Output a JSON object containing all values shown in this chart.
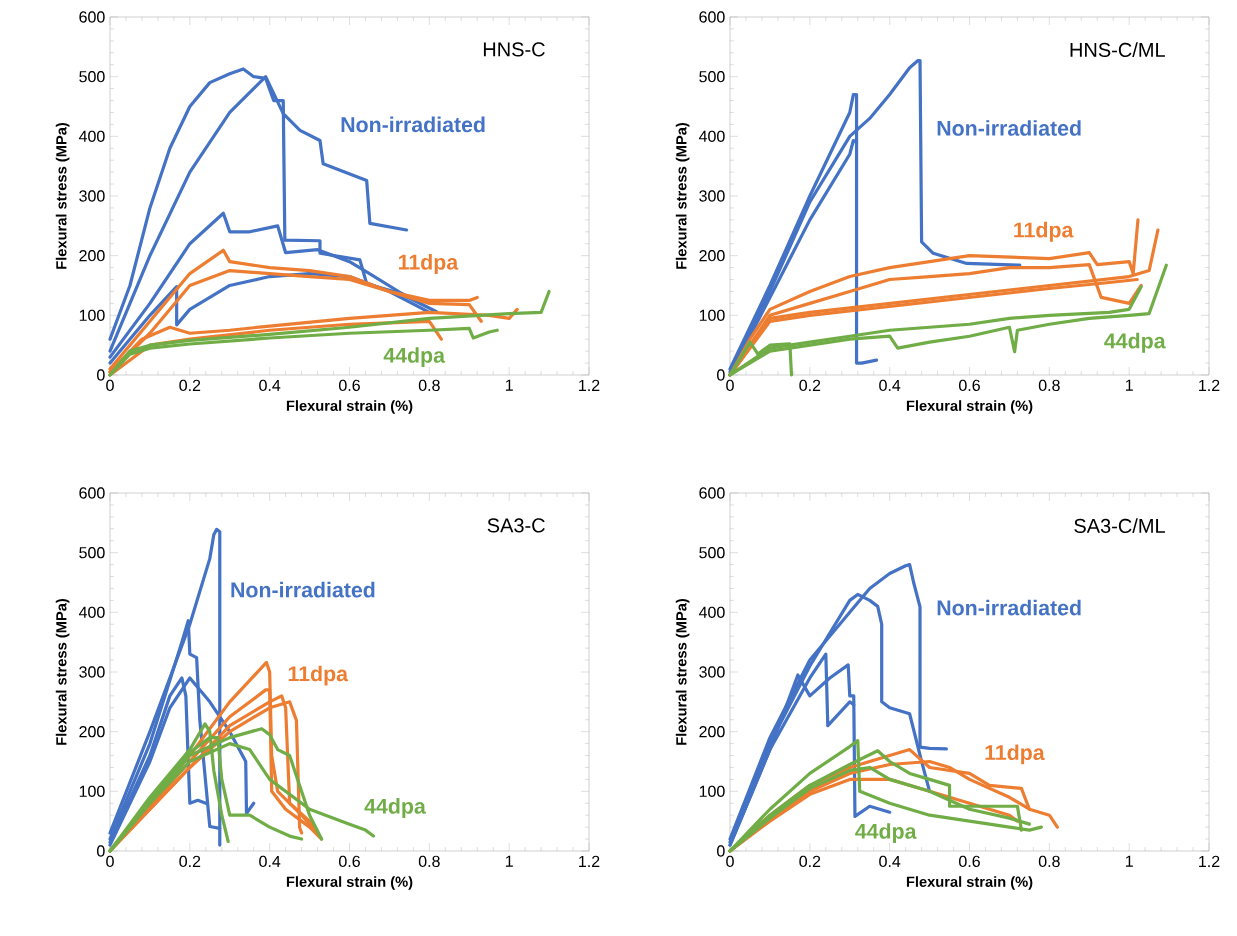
{
  "chart_data": [
    {
      "type": "line",
      "title": "HNS-C",
      "xlabel": "Flexural strain (%)",
      "ylabel": "Flexural stress (MPa)",
      "xlim": [
        0,
        1.2
      ],
      "ylim": [
        0,
        600
      ],
      "xticks": [
        0,
        0.2,
        0.4,
        0.6,
        0.8,
        1,
        1.2
      ],
      "yticks": [
        0,
        100,
        200,
        300,
        400,
        500,
        600
      ],
      "series": [
        {
          "name": "Non-irradiated",
          "color": "#4472c4",
          "x": [
            0,
            0.05,
            0.1,
            0.15,
            0.2,
            0.25,
            0.3,
            0.334,
            0.36,
            0.39,
            0.41,
            0.434,
            0.438,
            0.526,
            0.526,
            0.626,
            0.643,
            0.726,
            0.818
          ],
          "values": [
            60,
            150,
            280,
            380,
            450,
            490,
            505,
            513,
            500,
            497,
            460,
            460,
            226,
            225,
            204,
            193,
            153,
            137,
            106
          ]
        },
        {
          "color": "#4472c4",
          "x": [
            0,
            0.1,
            0.2,
            0.3,
            0.39,
            0.434,
            0.476,
            0.526,
            0.534,
            0.643,
            0.651,
            0.743
          ],
          "values": [
            40,
            200,
            340,
            440,
            500,
            438,
            410,
            393,
            354,
            326,
            254,
            243
          ]
        },
        {
          "color": "#4472c4",
          "x": [
            0,
            0.1,
            0.2,
            0.284,
            0.3,
            0.35,
            0.42,
            0.44,
            0.52,
            0.6,
            0.65,
            0.73,
            0.75
          ],
          "values": [
            30,
            120,
            220,
            271,
            240,
            240,
            250,
            205,
            210,
            190,
            170,
            137,
            130
          ]
        },
        {
          "color": "#4472c4",
          "x": [
            0,
            0.1,
            0.167,
            0.167,
            0.2,
            0.3,
            0.4,
            0.5,
            0.6,
            0.7,
            0.8
          ],
          "values": [
            20,
            100,
            148,
            84,
            110,
            150,
            165,
            170,
            165,
            140,
            105
          ]
        },
        {
          "name": "11dpa",
          "color": "#ed7d31",
          "x": [
            0,
            0.1,
            0.2,
            0.284,
            0.3,
            0.4,
            0.5,
            0.6,
            0.7,
            0.8,
            0.9,
            0.92
          ],
          "values": [
            10,
            90,
            170,
            209,
            190,
            180,
            175,
            165,
            140,
            125,
            125,
            130
          ]
        },
        {
          "color": "#ed7d31",
          "x": [
            0,
            0.1,
            0.2,
            0.3,
            0.4,
            0.5,
            0.6,
            0.7,
            0.8,
            0.9,
            0.93
          ],
          "values": [
            5,
            70,
            150,
            175,
            170,
            165,
            160,
            140,
            120,
            118,
            90
          ]
        },
        {
          "color": "#ed7d31",
          "x": [
            0,
            0.08,
            0.15,
            0.2,
            0.3,
            0.4,
            0.6,
            0.8,
            0.95,
            1.0,
            1.02
          ],
          "values": [
            5,
            60,
            80,
            70,
            75,
            82,
            95,
            105,
            100,
            95,
            110
          ]
        },
        {
          "color": "#ed7d31",
          "x": [
            0,
            0.1,
            0.2,
            0.4,
            0.6,
            0.8,
            0.83
          ],
          "values": [
            0,
            50,
            60,
            75,
            85,
            90,
            60
          ]
        },
        {
          "name": "44dpa",
          "color": "#70ad47",
          "x": [
            0,
            0.05,
            0.1,
            0.2,
            0.4,
            0.6,
            0.8,
            1.0,
            1.08,
            1.1
          ],
          "values": [
            0,
            40,
            50,
            58,
            68,
            80,
            95,
            103,
            105,
            140
          ]
        },
        {
          "color": "#70ad47",
          "x": [
            0,
            0.05,
            0.1,
            0.2,
            0.4,
            0.6,
            0.8,
            0.9,
            0.91,
            0.95,
            0.97
          ],
          "values": [
            0,
            35,
            45,
            52,
            62,
            70,
            75,
            78,
            62,
            72,
            75
          ]
        }
      ]
    },
    {
      "type": "line",
      "title": "HNS-C/ML",
      "xlabel": "Flexural strain (%)",
      "ylabel": "Flexural stress (MPa)",
      "xlim": [
        0,
        1.2
      ],
      "ylim": [
        0,
        600
      ],
      "xticks": [
        0,
        0.2,
        0.4,
        0.6,
        0.8,
        1,
        1.2
      ],
      "yticks": [
        0,
        100,
        200,
        300,
        400,
        500,
        600
      ],
      "series": [
        {
          "name": "Non-irradiated",
          "color": "#4472c4",
          "x": [
            0,
            0.1,
            0.2,
            0.3,
            0.309,
            0.317,
            0.317,
            0.33,
            0.367
          ],
          "values": [
            10,
            150,
            300,
            440,
            470,
            470,
            20,
            20,
            25
          ]
        },
        {
          "color": "#4472c4",
          "x": [
            0,
            0.1,
            0.2,
            0.3,
            0.35,
            0.4,
            0.45,
            0.471,
            0.476,
            0.48,
            0.509,
            0.593,
            0.726
          ],
          "values": [
            5,
            140,
            290,
            400,
            430,
            470,
            515,
            527,
            527,
            223,
            204,
            187,
            184
          ]
        },
        {
          "color": "#4472c4",
          "x": [
            0,
            0.1,
            0.2,
            0.3,
            0.309,
            0.317
          ],
          "values": [
            0,
            130,
            260,
            370,
            393,
            390
          ]
        },
        {
          "name": "11dpa",
          "color": "#ed7d31",
          "x": [
            0,
            0.05,
            0.1,
            0.2,
            0.3,
            0.4,
            0.5,
            0.6,
            0.8,
            0.9,
            0.92,
            1.0,
            1.01,
            1.022
          ],
          "values": [
            0,
            60,
            110,
            140,
            165,
            180,
            190,
            200,
            195,
            205,
            185,
            190,
            170,
            260
          ]
        },
        {
          "color": "#ed7d31",
          "x": [
            0,
            0.1,
            0.2,
            0.3,
            0.4,
            0.5,
            0.6,
            0.7,
            0.8,
            0.9,
            0.93,
            1.0,
            1.03
          ],
          "values": [
            0,
            100,
            120,
            140,
            160,
            165,
            170,
            180,
            180,
            185,
            130,
            120,
            150
          ]
        },
        {
          "color": "#ed7d31",
          "x": [
            0,
            0.1,
            0.2,
            0.4,
            0.6,
            0.8,
            1.0,
            1.05,
            1.072
          ],
          "values": [
            0,
            95,
            105,
            120,
            135,
            150,
            165,
            175,
            243
          ]
        },
        {
          "color": "#ed7d31",
          "x": [
            0,
            0.1,
            0.2,
            0.4,
            0.6,
            0.8,
            0.95,
            1.02
          ],
          "values": [
            0,
            90,
            100,
            115,
            130,
            145,
            155,
            160
          ]
        },
        {
          "name": "44dpa",
          "color": "#70ad47",
          "x": [
            0,
            0.05,
            0.07,
            0.1,
            0.15,
            0.154
          ],
          "values": [
            0,
            55,
            35,
            50,
            52,
            0
          ]
        },
        {
          "color": "#70ad47",
          "x": [
            0,
            0.1,
            0.2,
            0.3,
            0.4,
            0.42,
            0.5,
            0.6,
            0.7,
            0.713,
            0.72,
            0.8,
            0.9,
            1.0,
            1.05,
            1.093
          ],
          "values": [
            0,
            40,
            50,
            60,
            65,
            45,
            55,
            65,
            80,
            39,
            75,
            85,
            95,
            100,
            103,
            184
          ]
        },
        {
          "color": "#70ad47",
          "x": [
            0,
            0.1,
            0.2,
            0.3,
            0.4,
            0.5,
            0.6,
            0.7,
            0.8,
            0.95,
            1.0,
            1.03
          ],
          "values": [
            0,
            45,
            55,
            65,
            75,
            80,
            85,
            95,
            100,
            105,
            110,
            148
          ]
        }
      ]
    },
    {
      "type": "line",
      "title": "SA3-C",
      "xlabel": "Flexural strain (%)",
      "ylabel": "Flexural stress (MPa)",
      "xlim": [
        0,
        1.2
      ],
      "ylim": [
        0,
        600
      ],
      "xticks": [
        0,
        0.2,
        0.4,
        0.6,
        0.8,
        1,
        1.2
      ],
      "yticks": [
        0,
        100,
        200,
        300,
        400,
        500,
        600
      ],
      "series": [
        {
          "name": "Non-irradiated",
          "color": "#4472c4",
          "x": [
            0,
            0.1,
            0.2,
            0.25,
            0.26,
            0.267,
            0.275,
            0.275
          ],
          "values": [
            30,
            200,
            380,
            490,
            530,
            539,
            535,
            10
          ]
        },
        {
          "color": "#4472c4",
          "x": [
            0,
            0.1,
            0.18,
            0.196,
            0.2,
            0.217,
            0.225,
            0.25,
            0.275
          ],
          "values": [
            20,
            180,
            350,
            386,
            330,
            324,
            219,
            41,
            38
          ]
        },
        {
          "color": "#4472c4",
          "x": [
            0,
            0.1,
            0.15,
            0.18,
            0.19,
            0.2,
            0.22,
            0.24
          ],
          "values": [
            15,
            160,
            260,
            290,
            260,
            80,
            85,
            80
          ]
        },
        {
          "color": "#4472c4",
          "x": [
            0,
            0.1,
            0.15,
            0.2,
            0.25,
            0.3,
            0.34,
            0.342,
            0.36
          ],
          "values": [
            10,
            150,
            240,
            290,
            250,
            200,
            150,
            63,
            80
          ]
        },
        {
          "name": "11dpa",
          "color": "#ed7d31",
          "x": [
            0,
            0.1,
            0.2,
            0.3,
            0.392,
            0.4,
            0.405,
            0.42,
            0.48,
            0.52
          ],
          "values": [
            0,
            80,
            160,
            250,
            316,
            300,
            160,
            100,
            60,
            30
          ]
        },
        {
          "color": "#ed7d31",
          "x": [
            0,
            0.1,
            0.2,
            0.3,
            0.39,
            0.4,
            0.405,
            0.44,
            0.5,
            0.53
          ],
          "values": [
            0,
            75,
            150,
            225,
            270,
            270,
            100,
            70,
            40,
            20
          ]
        },
        {
          "color": "#ed7d31",
          "x": [
            0,
            0.1,
            0.2,
            0.3,
            0.4,
            0.43,
            0.44,
            0.45,
            0.5,
            0.52
          ],
          "values": [
            0,
            70,
            140,
            210,
            250,
            260,
            240,
            80,
            50,
            30
          ]
        },
        {
          "color": "#ed7d31",
          "x": [
            0,
            0.1,
            0.2,
            0.3,
            0.4,
            0.45,
            0.467,
            0.475,
            0.48
          ],
          "values": [
            0,
            70,
            140,
            200,
            240,
            250,
            219,
            40,
            30
          ]
        },
        {
          "name": "44dpa",
          "color": "#70ad47",
          "x": [
            0,
            0.1,
            0.2,
            0.238,
            0.25,
            0.26,
            0.28,
            0.296
          ],
          "values": [
            0,
            90,
            170,
            213,
            200,
            135,
            60,
            16
          ]
        },
        {
          "color": "#70ad47",
          "x": [
            0,
            0.1,
            0.2,
            0.25,
            0.27,
            0.28,
            0.3,
            0.35,
            0.4,
            0.45,
            0.48
          ],
          "values": [
            0,
            85,
            165,
            190,
            190,
            120,
            60,
            60,
            40,
            25,
            20
          ]
        },
        {
          "color": "#70ad47",
          "x": [
            0,
            0.1,
            0.2,
            0.3,
            0.38,
            0.4,
            0.42,
            0.45,
            0.47,
            0.5,
            0.53
          ],
          "values": [
            0,
            80,
            160,
            190,
            205,
            195,
            170,
            160,
            120,
            60,
            20
          ]
        },
        {
          "color": "#70ad47",
          "x": [
            0,
            0.1,
            0.2,
            0.3,
            0.35,
            0.4,
            0.5,
            0.6,
            0.64,
            0.66
          ],
          "values": [
            0,
            80,
            150,
            180,
            170,
            120,
            70,
            45,
            35,
            25
          ]
        }
      ]
    },
    {
      "type": "line",
      "title": "SA3-C/ML",
      "xlabel": "Flexural strain (%)",
      "ylabel": "Flexural stress (MPa)",
      "xlim": [
        0,
        1.2
      ],
      "ylim": [
        0,
        600
      ],
      "xticks": [
        0,
        0.2,
        0.4,
        0.6,
        0.8,
        1,
        1.2
      ],
      "yticks": [
        0,
        100,
        200,
        300,
        400,
        500,
        600
      ],
      "series": [
        {
          "name": "Non-irradiated",
          "color": "#4472c4",
          "x": [
            0,
            0.1,
            0.2,
            0.3,
            0.35,
            0.4,
            0.44,
            0.45,
            0.46,
            0.476,
            0.476,
            0.5,
            0.542
          ],
          "values": [
            20,
            190,
            320,
            400,
            440,
            465,
            478,
            480,
            450,
            409,
            174,
            172,
            171
          ]
        },
        {
          "color": "#4472c4",
          "x": [
            0,
            0.1,
            0.2,
            0.3,
            0.32,
            0.35,
            0.37,
            0.38,
            0.38,
            0.4,
            0.45,
            0.48,
            0.5
          ],
          "values": [
            15,
            180,
            310,
            420,
            430,
            420,
            410,
            380,
            250,
            240,
            230,
            150,
            100
          ]
        },
        {
          "color": "#4472c4",
          "x": [
            0,
            0.1,
            0.17,
            0.2,
            0.25,
            0.296,
            0.3,
            0.31,
            0.313,
            0.35,
            0.4
          ],
          "values": [
            10,
            170,
            295,
            260,
            290,
            312,
            260,
            260,
            58,
            75,
            65
          ]
        },
        {
          "color": "#4472c4",
          "x": [
            0,
            0.1,
            0.2,
            0.24,
            0.245,
            0.3,
            0.31
          ],
          "values": [
            10,
            170,
            290,
            330,
            210,
            250,
            245
          ]
        },
        {
          "name": "11dpa",
          "color": "#ed7d31",
          "x": [
            0,
            0.1,
            0.2,
            0.3,
            0.4,
            0.45,
            0.5,
            0.6,
            0.65,
            0.73,
            0.75,
            0.8,
            0.82
          ],
          "values": [
            0,
            60,
            110,
            140,
            160,
            170,
            140,
            130,
            110,
            105,
            70,
            60,
            40
          ]
        },
        {
          "color": "#ed7d31",
          "x": [
            0,
            0.1,
            0.2,
            0.3,
            0.4,
            0.5,
            0.55,
            0.6,
            0.7,
            0.75
          ],
          "values": [
            0,
            55,
            100,
            130,
            145,
            150,
            140,
            120,
            90,
            70
          ]
        },
        {
          "color": "#ed7d31",
          "x": [
            0,
            0.1,
            0.2,
            0.3,
            0.4,
            0.5,
            0.6,
            0.7,
            0.72
          ],
          "values": [
            0,
            50,
            95,
            120,
            120,
            100,
            80,
            60,
            50
          ]
        },
        {
          "name": "44dpa",
          "color": "#70ad47",
          "x": [
            0,
            0.1,
            0.2,
            0.3,
            0.32,
            0.325,
            0.4,
            0.5,
            0.6,
            0.7,
            0.75,
            0.78
          ],
          "values": [
            0,
            70,
            130,
            175,
            185,
            100,
            80,
            60,
            50,
            40,
            35,
            40
          ]
        },
        {
          "color": "#70ad47",
          "x": [
            0,
            0.1,
            0.2,
            0.3,
            0.37,
            0.4,
            0.45,
            0.5,
            0.55,
            0.55,
            0.72,
            0.73
          ],
          "values": [
            0,
            60,
            110,
            145,
            168,
            150,
            130,
            120,
            110,
            75,
            75,
            35
          ]
        },
        {
          "color": "#70ad47",
          "x": [
            0,
            0.1,
            0.2,
            0.3,
            0.35,
            0.4,
            0.5,
            0.6,
            0.7,
            0.75
          ],
          "values": [
            0,
            55,
            105,
            135,
            140,
            120,
            100,
            70,
            55,
            45
          ]
        }
      ]
    }
  ]
}
